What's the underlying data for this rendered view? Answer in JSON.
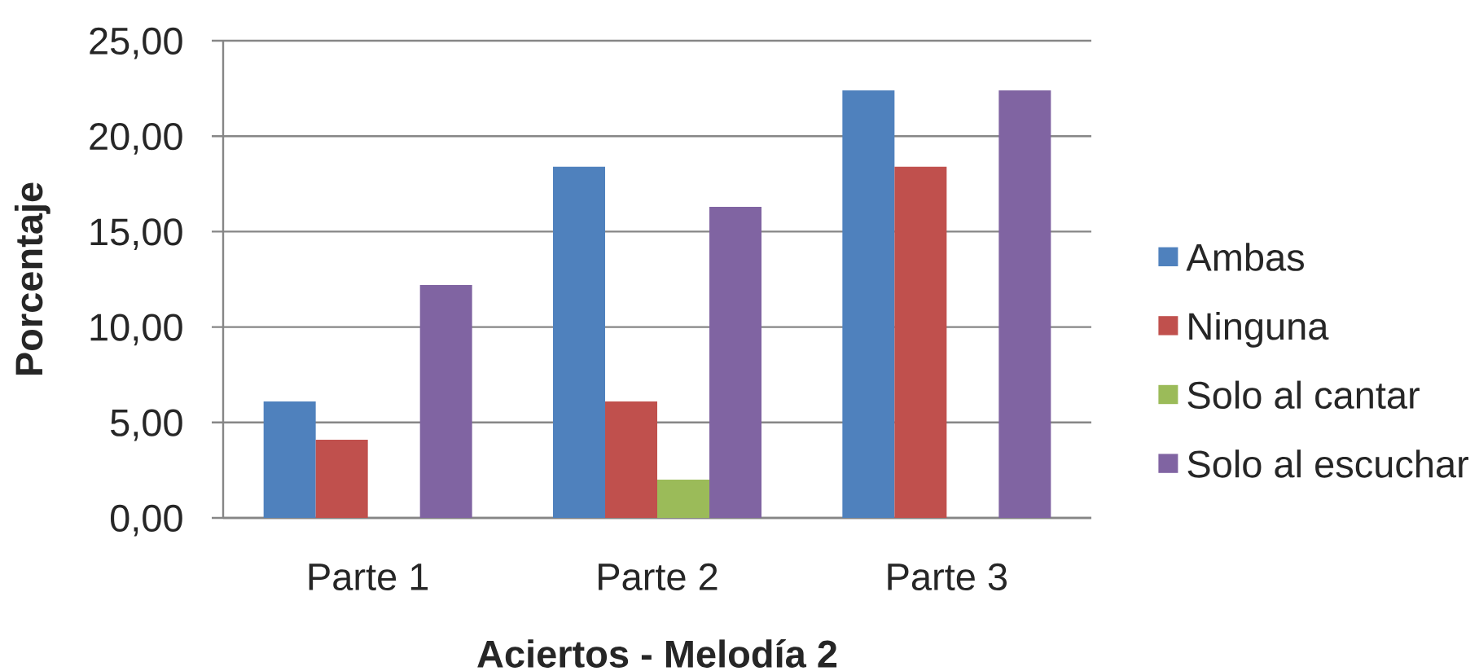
{
  "chart_data": {
    "type": "bar",
    "xlabel": "Aciertos - Melodía 2",
    "ylabel": "Porcentaje",
    "categories": [
      "Parte 1",
      "Parte 2",
      "Parte 3"
    ],
    "series": [
      {
        "name": "Ambas",
        "color": "#4f81bd",
        "values": [
          6.1,
          18.4,
          22.4
        ]
      },
      {
        "name": "Ninguna",
        "color": "#c0504d",
        "values": [
          4.1,
          6.1,
          18.4
        ]
      },
      {
        "name": "Solo al cantar",
        "color": "#9bbb59",
        "values": [
          null,
          2.0,
          null
        ]
      },
      {
        "name": "Solo al escuchar",
        "color": "#8064a2",
        "values": [
          12.2,
          16.3,
          22.4
        ]
      }
    ],
    "ylim": [
      0,
      25
    ],
    "yticks": [
      {
        "value": 0,
        "label": "0,00"
      },
      {
        "value": 5,
        "label": "5,00"
      },
      {
        "value": 10,
        "label": "10,00"
      },
      {
        "value": 15,
        "label": "15,00"
      },
      {
        "value": 20,
        "label": "20,00"
      },
      {
        "value": 25,
        "label": "25,00"
      }
    ],
    "grid": "y",
    "legend": "right"
  }
}
